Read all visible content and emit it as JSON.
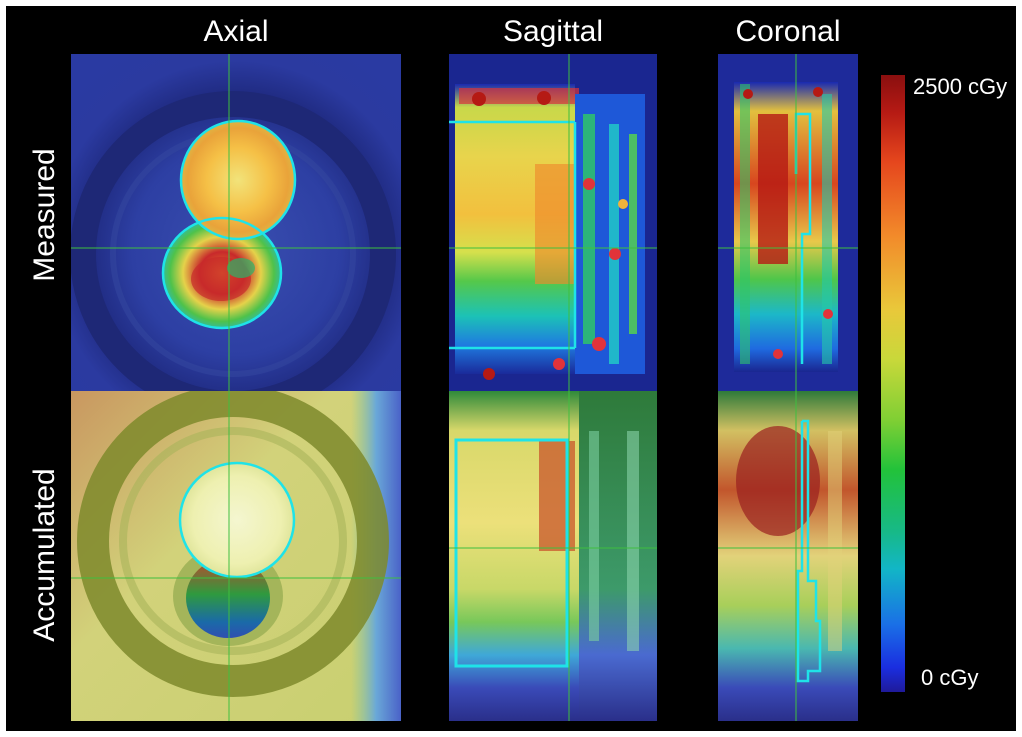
{
  "figure": {
    "columns": [
      {
        "label": "Axial"
      },
      {
        "label": "Sagittal"
      },
      {
        "label": "Coronal"
      }
    ],
    "rows": [
      {
        "label": "Measured"
      },
      {
        "label": "Accumulated"
      }
    ],
    "colorbar": {
      "max_label": "2500 cGy",
      "min_label": "0 cGy"
    },
    "colors": {
      "contour": "#1fe3e8",
      "crosshair": "#3fbf3f",
      "background": "#000000"
    }
  }
}
